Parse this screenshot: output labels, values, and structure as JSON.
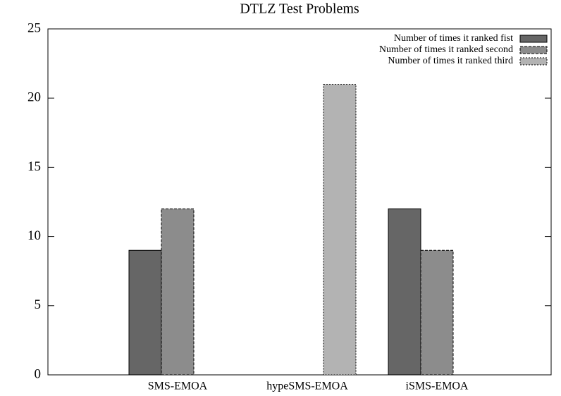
{
  "chart_data": {
    "type": "bar",
    "title": "DTLZ Test Problems",
    "categories": [
      "SMS-EMOA",
      "hypeSMS-EMOA",
      "iSMS-EMOA"
    ],
    "series": [
      {
        "name": "Number of times it ranked fist",
        "color": "#666666",
        "values": [
          9,
          0,
          12
        ]
      },
      {
        "name": "Number of times it ranked second",
        "color": "#8c8c8c",
        "values": [
          12,
          0,
          9
        ]
      },
      {
        "name": "Number of times it ranked third",
        "color": "#b3b3b3",
        "values": [
          0,
          21,
          0
        ]
      }
    ],
    "ylim": [
      0,
      25
    ],
    "yticks": [
      0,
      5,
      10,
      15,
      20,
      25
    ],
    "legend": "top-right",
    "grid": false
  }
}
